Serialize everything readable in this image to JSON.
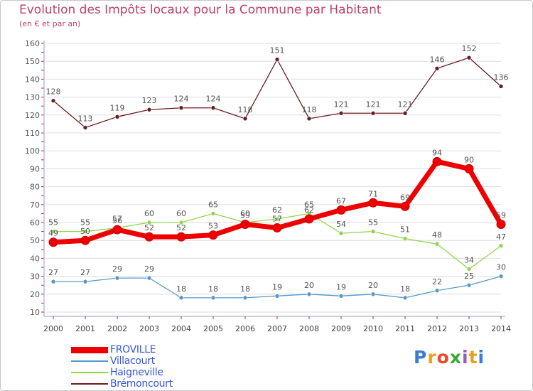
{
  "title": "Evolution des Impôts locaux pour la Commune par Habitant",
  "subtitle": "(en € et par an)",
  "logo_text": "Proxiti",
  "chart_data": {
    "type": "line",
    "title": "Evolution des Impôts locaux pour la Commune par Habitant",
    "subtitle": "(en € et par an)",
    "xlabel": "",
    "ylabel": "",
    "ylim": [
      10,
      160
    ],
    "yticks": [
      10,
      20,
      30,
      40,
      50,
      60,
      70,
      80,
      90,
      100,
      110,
      120,
      130,
      140,
      150,
      160
    ],
    "grid": "horizontal",
    "categories": [
      "2000",
      "2001",
      "2002",
      "2003",
      "2004",
      "2005",
      "2006",
      "2007",
      "2008",
      "2009",
      "2010",
      "2011",
      "2012",
      "2013",
      "2014"
    ],
    "series": [
      {
        "name": "Brémoncourt",
        "color": "#6b1c20",
        "values": [
          128,
          113,
          119,
          123,
          124,
          124,
          118,
          151,
          118,
          121,
          121,
          121,
          146,
          152,
          136
        ]
      },
      {
        "name": "Haigneville",
        "color": "#8fd64a",
        "values": [
          55,
          55,
          57,
          60,
          60,
          65,
          60,
          62,
          65,
          54,
          55,
          51,
          48,
          34,
          47
        ]
      },
      {
        "name": "Villacourt",
        "color": "#5599cc",
        "values": [
          27,
          27,
          29,
          29,
          18,
          18,
          18,
          19,
          20,
          19,
          20,
          18,
          22,
          25,
          30
        ]
      },
      {
        "name": "FROVILLE",
        "color": "#ee0000",
        "values": [
          49,
          50,
          56,
          52,
          52,
          53,
          59,
          57,
          62,
          67,
          71,
          69,
          94,
          90,
          59
        ]
      }
    ],
    "legend": [
      {
        "name": "FROVILLE",
        "color": "#ee0000"
      },
      {
        "name": "Villacourt",
        "color": "#5599cc"
      },
      {
        "name": "Haigneville",
        "color": "#8fd64a"
      },
      {
        "name": "Brémoncourt",
        "color": "#6b1c20"
      }
    ],
    "legend_position": "bottom-left"
  }
}
